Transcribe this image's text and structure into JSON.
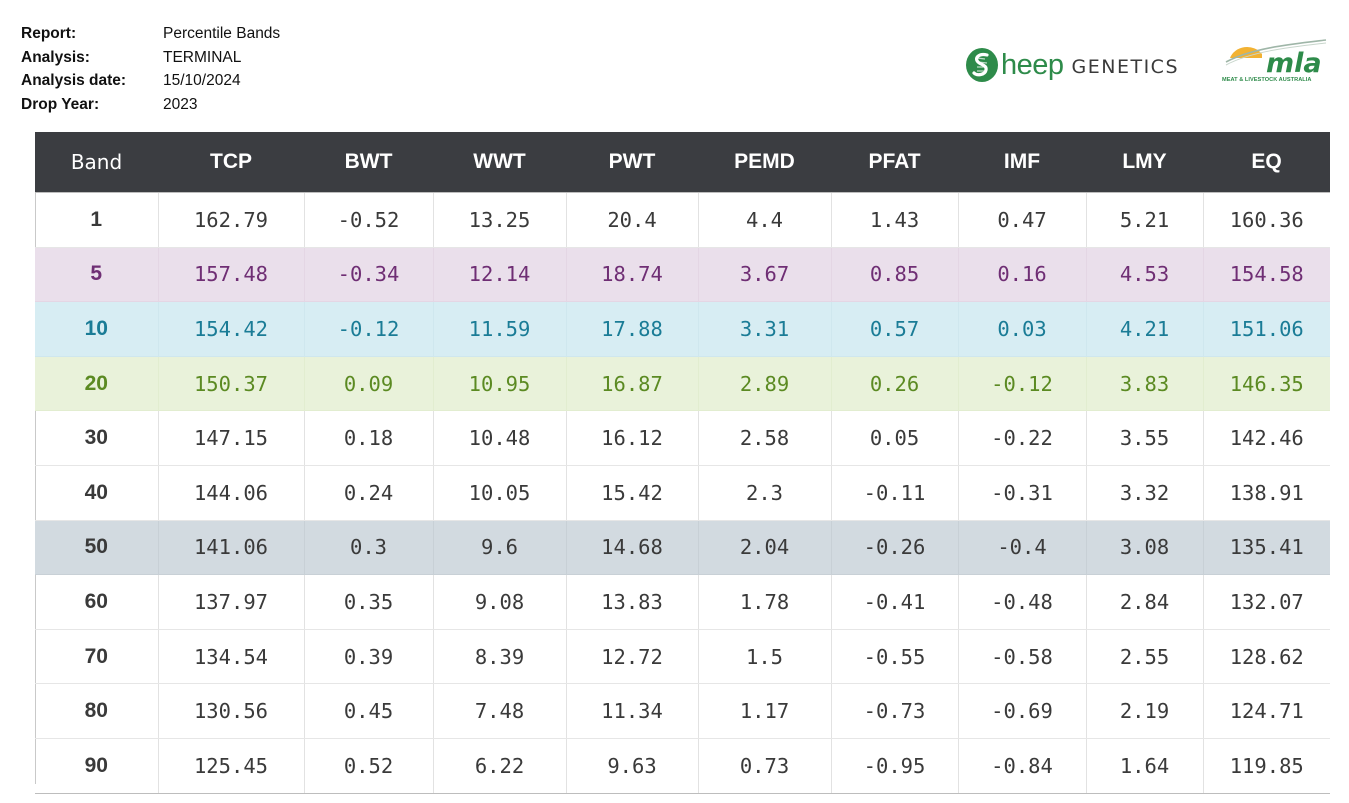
{
  "meta": {
    "report_label": "Report:",
    "report_value": "Percentile Bands",
    "analysis_label": "Analysis:",
    "analysis_value": "TERMINAL",
    "analysis_date_label": "Analysis date:",
    "analysis_date_value": "15/10/2024",
    "drop_year_label": "Drop Year:",
    "drop_year_value": "2023"
  },
  "logos": {
    "sheep_genetics": {
      "part1": "heep",
      "part2": "GENETICS",
      "icon": "sheep-genetics-s-emblem-icon",
      "color": "#2e8b4a"
    },
    "mla": {
      "wordmark": "mla",
      "tagline": "MEAT & LIVESTOCK AUSTRALIA",
      "icon": "mla-sun-arc-icon",
      "sun_color": "#f2b233",
      "text_color": "#2e8b4a"
    }
  },
  "table": {
    "headers": [
      "Band",
      "TCP",
      "BWT",
      "WWT",
      "PWT",
      "PEMD",
      "PFAT",
      "IMF",
      "LMY",
      "EQ"
    ],
    "rows": [
      [
        "1",
        "162.79",
        "-0.52",
        "13.25",
        "20.4",
        "4.4",
        "1.43",
        "0.47",
        "5.21",
        "160.36"
      ],
      [
        "5",
        "157.48",
        "-0.34",
        "12.14",
        "18.74",
        "3.67",
        "0.85",
        "0.16",
        "4.53",
        "154.58"
      ],
      [
        "10",
        "154.42",
        "-0.12",
        "11.59",
        "17.88",
        "3.31",
        "0.57",
        "0.03",
        "4.21",
        "151.06"
      ],
      [
        "20",
        "150.37",
        "0.09",
        "10.95",
        "16.87",
        "2.89",
        "0.26",
        "-0.12",
        "3.83",
        "146.35"
      ],
      [
        "30",
        "147.15",
        "0.18",
        "10.48",
        "16.12",
        "2.58",
        "0.05",
        "-0.22",
        "3.55",
        "142.46"
      ],
      [
        "40",
        "144.06",
        "0.24",
        "10.05",
        "15.42",
        "2.3",
        "-0.11",
        "-0.31",
        "3.32",
        "138.91"
      ],
      [
        "50",
        "141.06",
        "0.3",
        "9.6",
        "14.68",
        "2.04",
        "-0.26",
        "-0.4",
        "3.08",
        "135.41"
      ],
      [
        "60",
        "137.97",
        "0.35",
        "9.08",
        "13.83",
        "1.78",
        "-0.41",
        "-0.48",
        "2.84",
        "132.07"
      ],
      [
        "70",
        "134.54",
        "0.39",
        "8.39",
        "12.72",
        "1.5",
        "-0.55",
        "-0.58",
        "2.55",
        "128.62"
      ],
      [
        "80",
        "130.56",
        "0.45",
        "7.48",
        "11.34",
        "1.17",
        "-0.73",
        "-0.69",
        "2.19",
        "124.71"
      ],
      [
        "90",
        "125.45",
        "0.52",
        "6.22",
        "9.63",
        "0.73",
        "-0.95",
        "-0.84",
        "1.64",
        "119.85"
      ]
    ],
    "colors": {
      "header_bg": "#3b3d41",
      "band_5_bg": "#eadfeb",
      "band_5_text": "#6f2e74",
      "band_10_bg": "#d7edf3",
      "band_10_text": "#1a7c96",
      "band_20_bg": "#e9f2da",
      "band_20_text": "#5b8a22",
      "band_50_bg": "#d2dae0"
    }
  }
}
